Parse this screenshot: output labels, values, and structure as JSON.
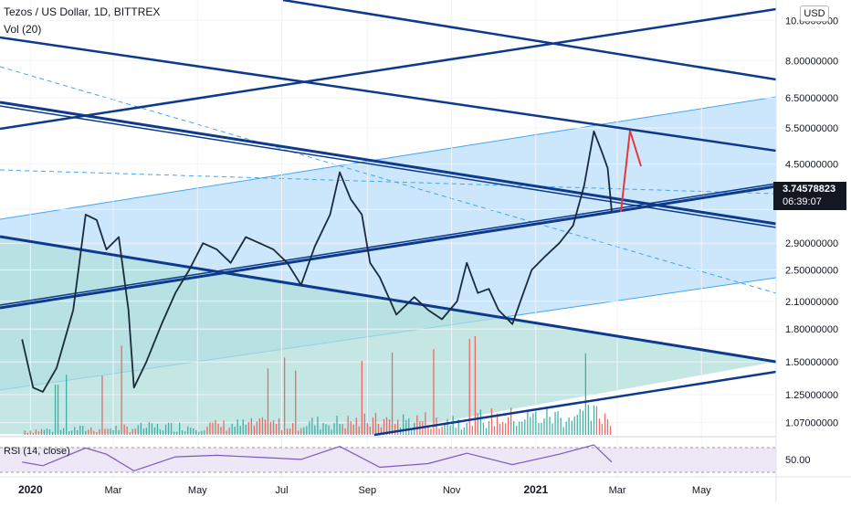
{
  "legend": {
    "main": "Tezos / US Dollar, 1D, BITTREX",
    "volume": "Vol (20)",
    "rsi": "RSI (14, close)"
  },
  "currency_badge": "USD",
  "current_price": {
    "value": "3.74578823",
    "countdown": "06:39:07"
  },
  "colors": {
    "price_line": "#1a2b3c",
    "trendline_dark": "#0d3a8c",
    "channel_fill": "#bbdefb",
    "channel_edge": "#42a5f5",
    "triangle_fill": "#b2dfdb",
    "volume_up": "#26a69a",
    "volume_down": "#ef5350",
    "rsi_line": "#7e57c2",
    "rsi_band": "#ede7f6",
    "projection_arrow": "#e53935"
  },
  "chart_data": [
    {
      "type": "line",
      "title": "Tezos / US Dollar, 1D, BITTREX",
      "scale": "log",
      "y_ticks": [
        1.07,
        1.25,
        1.5,
        1.8,
        2.1,
        2.5,
        2.9,
        3.5,
        4.5,
        5.5,
        6.5,
        8.0,
        10.0
      ],
      "y_tick_labels": [
        "1.07000000",
        "1.25000000",
        "1.50000000",
        "1.80000000",
        "2.10000000",
        "2.50000000",
        "2.90000000",
        "",
        "4.50000000",
        "5.50000000",
        "6.50000000",
        "8.00000000",
        "10.0000000"
      ],
      "x_tick_labels": [
        "2020",
        "Mar",
        "May",
        "Jul",
        "Sep",
        "Nov",
        "2021",
        "Mar",
        "May"
      ],
      "x_tick_dates": [
        "2020-01-01",
        "2020-03-01",
        "2020-05-01",
        "2020-07-01",
        "2020-09-01",
        "2020-11-01",
        "2021-01-01",
        "2021-03-01",
        "2021-05-01"
      ],
      "x_range": [
        "2019-12-10",
        "2021-06-24"
      ],
      "y_range": [
        1.0,
        10.7
      ],
      "series": [
        {
          "x": [
            "2019-12-26",
            "2020-01-03",
            "2020-01-10",
            "2020-01-20",
            "2020-02-01",
            "2020-02-10",
            "2020-02-18",
            "2020-02-25",
            "2020-03-05",
            "2020-03-12",
            "2020-03-16",
            "2020-03-25",
            "2020-04-05",
            "2020-04-15",
            "2020-04-25",
            "2020-05-05",
            "2020-05-15",
            "2020-05-25",
            "2020-06-05",
            "2020-06-15",
            "2020-06-25",
            "2020-07-05",
            "2020-07-15",
            "2020-07-25",
            "2020-08-05",
            "2020-08-12",
            "2020-08-20",
            "2020-08-28",
            "2020-09-03",
            "2020-09-10",
            "2020-09-22",
            "2020-10-05",
            "2020-10-15",
            "2020-10-25",
            "2020-11-05",
            "2020-11-12",
            "2020-11-20",
            "2020-11-28",
            "2020-12-05",
            "2020-12-15",
            "2020-12-23",
            "2020-12-29",
            "2021-01-08",
            "2021-01-18",
            "2021-01-28",
            "2021-02-05",
            "2021-02-12",
            "2021-02-18",
            "2021-02-22",
            "2021-02-25"
          ],
          "values": [
            1.7,
            1.3,
            1.27,
            1.45,
            2.0,
            3.4,
            3.3,
            2.8,
            3.0,
            2.0,
            1.3,
            1.5,
            1.85,
            2.2,
            2.5,
            2.9,
            2.8,
            2.6,
            3.0,
            2.9,
            2.8,
            2.6,
            2.3,
            2.85,
            3.4,
            4.3,
            3.7,
            3.4,
            2.6,
            2.4,
            1.95,
            2.15,
            2.0,
            1.9,
            2.1,
            2.6,
            2.2,
            2.25,
            2.0,
            1.85,
            2.2,
            2.5,
            2.7,
            2.9,
            3.2,
            4.0,
            5.4,
            4.8,
            4.4,
            3.45
          ]
        }
      ]
    },
    {
      "type": "line",
      "title": "RSI (14, close)",
      "y_ticks": [
        50
      ],
      "y_tick_labels": [
        "50.00"
      ],
      "y_range": [
        20,
        85
      ],
      "series": [
        {
          "x": [
            "2019-12-26",
            "2020-01-10",
            "2020-02-10",
            "2020-02-25",
            "2020-03-16",
            "2020-04-15",
            "2020-05-15",
            "2020-06-15",
            "2020-07-15",
            "2020-08-12",
            "2020-09-10",
            "2020-10-15",
            "2020-11-12",
            "2020-12-15",
            "2021-01-18",
            "2021-02-12",
            "2021-02-25"
          ],
          "values": [
            45,
            38,
            72,
            60,
            28,
            55,
            58,
            54,
            50,
            75,
            35,
            42,
            62,
            40,
            60,
            78,
            45
          ]
        }
      ]
    }
  ]
}
